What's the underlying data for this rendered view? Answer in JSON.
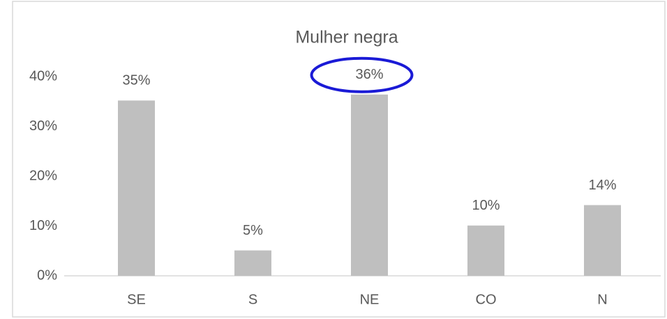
{
  "chart_data": {
    "type": "bar",
    "title": "Mulher negra",
    "categories": [
      "SE",
      "S",
      "NE",
      "CO",
      "N"
    ],
    "values": [
      35.2,
      5.1,
      36.4,
      10.1,
      14.2
    ],
    "value_labels": [
      "35%",
      "5%",
      "36%",
      "10%",
      "14%"
    ],
    "color": "#bfbfbf",
    "ylim": [
      0,
      40
    ],
    "yticks": [
      {
        "value": 0,
        "label": "0%"
      },
      {
        "value": 10,
        "label": "10%"
      },
      {
        "value": 20,
        "label": "20%"
      },
      {
        "value": 30,
        "label": "30%"
      },
      {
        "value": 40,
        "label": "40%"
      }
    ],
    "grid": false
  }
}
